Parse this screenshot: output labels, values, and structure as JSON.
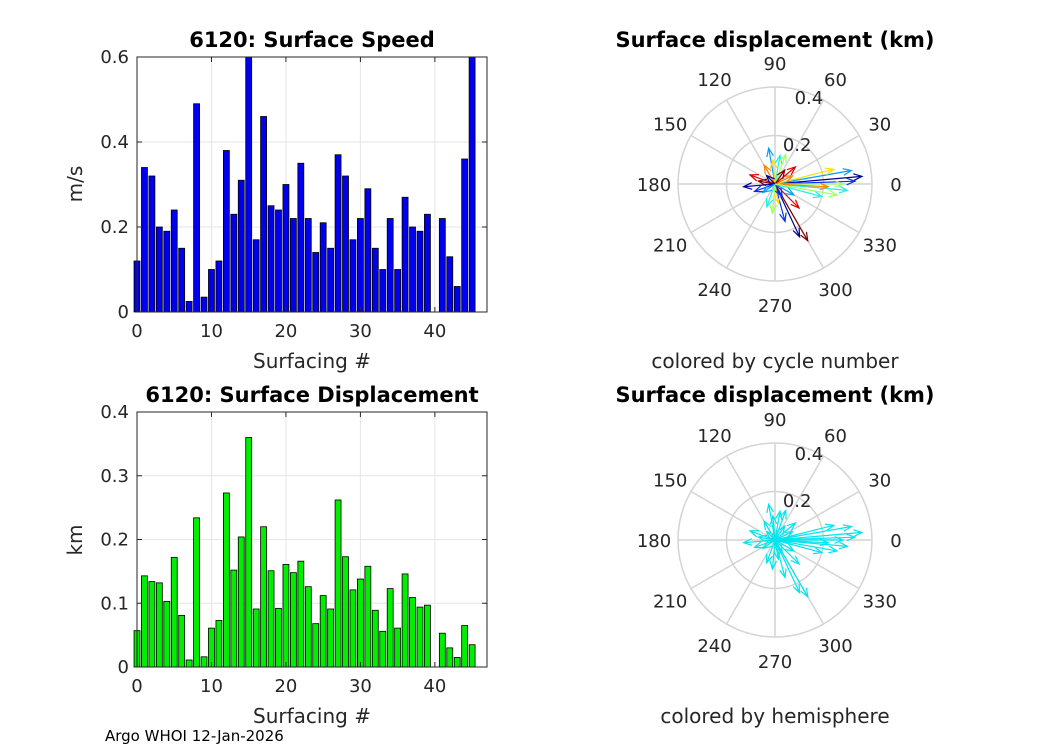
{
  "footer": "Argo WHOI 12-Jan-2026",
  "chart_data": [
    {
      "type": "bar",
      "title": "6120: Surface Speed",
      "xlabel": "Surfacing #",
      "ylabel": "m/s",
      "xlim": [
        0,
        47
      ],
      "ylim": [
        0,
        0.6
      ],
      "xticks": [
        "0",
        "10",
        "20",
        "30",
        "40"
      ],
      "yticks": [
        "0",
        "0.2",
        "0.4",
        "0.6"
      ],
      "bar_color": "#0000ee",
      "x": [
        0,
        1,
        2,
        3,
        4,
        5,
        6,
        7,
        8,
        9,
        10,
        11,
        12,
        13,
        14,
        15,
        16,
        17,
        18,
        19,
        20,
        21,
        22,
        23,
        24,
        25,
        26,
        27,
        28,
        29,
        30,
        31,
        32,
        33,
        34,
        35,
        36,
        37,
        38,
        39,
        40,
        41,
        42,
        43,
        44,
        45
      ],
      "values": [
        0.12,
        0.34,
        0.32,
        0.2,
        0.19,
        0.24,
        0.15,
        0.025,
        0.49,
        0.035,
        0.1,
        0.12,
        0.38,
        0.23,
        0.31,
        0.6,
        0.17,
        0.46,
        0.25,
        0.24,
        0.3,
        0.22,
        0.35,
        0.22,
        0.14,
        0.21,
        0.15,
        0.37,
        0.32,
        0.17,
        0.22,
        0.29,
        0.15,
        0.1,
        0.22,
        0.1,
        0.27,
        0.2,
        0.19,
        0.23,
        null,
        0.22,
        0.13,
        0.06,
        0.36,
        0.6
      ]
    },
    {
      "type": "polar-quiver",
      "title": "Surface displacement (km)",
      "subtitle": "colored by cycle number",
      "rmax": 0.4,
      "r_tick_labels": [
        "0.2",
        "0.4"
      ],
      "angle_labels": [
        "0",
        "30",
        "60",
        "90",
        "120",
        "150",
        "180",
        "210",
        "240",
        "270",
        "300",
        "330"
      ],
      "arrow_colors": [
        "#00008f",
        "#0030ff",
        "#00a0ff",
        "#20f0e0",
        "#a0ff60",
        "#ffe000",
        "#ff8000",
        "#e00000",
        "#800000"
      ],
      "arrows": [
        {
          "angle_deg": 5,
          "r": 0.36
        },
        {
          "angle_deg": 2,
          "r": 0.33
        },
        {
          "angle_deg": 10,
          "r": 0.32
        },
        {
          "angle_deg": -5,
          "r": 0.3
        },
        {
          "angle_deg": 0,
          "r": 0.28
        },
        {
          "angle_deg": 14,
          "r": 0.25
        },
        {
          "angle_deg": -3,
          "r": 0.22
        },
        {
          "angle_deg": -45,
          "r": 0.14
        },
        {
          "angle_deg": -60,
          "r": 0.27
        },
        {
          "angle_deg": -65,
          "r": 0.24
        },
        {
          "angle_deg": -75,
          "r": 0.16
        },
        {
          "angle_deg": 100,
          "r": 0.15
        },
        {
          "angle_deg": 80,
          "r": 0.12
        },
        {
          "angle_deg": 70,
          "r": 0.13
        },
        {
          "angle_deg": 95,
          "r": 0.1
        },
        {
          "angle_deg": 120,
          "r": 0.09
        },
        {
          "angle_deg": 160,
          "r": 0.11
        },
        {
          "angle_deg": 170,
          "r": 0.07
        },
        {
          "angle_deg": 185,
          "r": 0.13
        },
        {
          "angle_deg": 200,
          "r": 0.09
        },
        {
          "angle_deg": 215,
          "r": 0.06
        },
        {
          "angle_deg": 250,
          "r": 0.1
        },
        {
          "angle_deg": 265,
          "r": 0.12
        },
        {
          "angle_deg": 280,
          "r": 0.08
        },
        {
          "angle_deg": 25,
          "r": 0.08
        },
        {
          "angle_deg": 40,
          "r": 0.11
        },
        {
          "angle_deg": 55,
          "r": 0.07
        },
        {
          "angle_deg": 135,
          "r": 0.05
        },
        {
          "angle_deg": 300,
          "r": 0.06
        },
        {
          "angle_deg": 330,
          "r": 0.09
        },
        {
          "angle_deg": 345,
          "r": 0.2
        },
        {
          "angle_deg": 350,
          "r": 0.26
        }
      ]
    },
    {
      "type": "bar",
      "title": "6120: Surface Displacement",
      "xlabel": "Surfacing #",
      "ylabel": "km",
      "xlim": [
        0,
        47
      ],
      "ylim": [
        0,
        0.4
      ],
      "xticks": [
        "0",
        "10",
        "20",
        "30",
        "40"
      ],
      "yticks": [
        "0",
        "0.1",
        "0.2",
        "0.3",
        "0.4"
      ],
      "bar_color": "#00ee00",
      "x": [
        0,
        1,
        2,
        3,
        4,
        5,
        6,
        7,
        8,
        9,
        10,
        11,
        12,
        13,
        14,
        15,
        16,
        17,
        18,
        19,
        20,
        21,
        22,
        23,
        24,
        25,
        26,
        27,
        28,
        29,
        30,
        31,
        32,
        33,
        34,
        35,
        36,
        37,
        38,
        39,
        40,
        41,
        42,
        43,
        44,
        45
      ],
      "values": [
        0.057,
        0.143,
        0.134,
        0.132,
        0.103,
        0.172,
        0.081,
        0.011,
        0.234,
        0.016,
        0.061,
        0.073,
        0.273,
        0.152,
        0.204,
        0.36,
        0.091,
        0.22,
        0.151,
        0.092,
        0.161,
        0.148,
        0.166,
        0.126,
        0.068,
        0.112,
        0.091,
        0.262,
        0.173,
        0.121,
        0.138,
        0.158,
        0.089,
        0.056,
        0.123,
        0.061,
        0.146,
        0.109,
        0.094,
        0.097,
        null,
        0.053,
        0.03,
        0.015,
        0.065,
        0.035
      ]
    },
    {
      "type": "polar-quiver",
      "title": "Surface displacement (km)",
      "subtitle": "colored by hemisphere",
      "rmax": 0.4,
      "r_tick_labels": [
        "0.2",
        "0.4"
      ],
      "angle_labels": [
        "0",
        "30",
        "60",
        "90",
        "120",
        "150",
        "180",
        "210",
        "240",
        "270",
        "300",
        "330"
      ],
      "arrow_colors": [
        "#00e5ee"
      ],
      "arrows": [
        {
          "angle_deg": 5,
          "r": 0.36
        },
        {
          "angle_deg": 2,
          "r": 0.33
        },
        {
          "angle_deg": 10,
          "r": 0.32
        },
        {
          "angle_deg": -5,
          "r": 0.3
        },
        {
          "angle_deg": 0,
          "r": 0.28
        },
        {
          "angle_deg": 14,
          "r": 0.25
        },
        {
          "angle_deg": -3,
          "r": 0.22
        },
        {
          "angle_deg": -45,
          "r": 0.14
        },
        {
          "angle_deg": -60,
          "r": 0.27
        },
        {
          "angle_deg": -65,
          "r": 0.24
        },
        {
          "angle_deg": -75,
          "r": 0.16
        },
        {
          "angle_deg": 100,
          "r": 0.15
        },
        {
          "angle_deg": 80,
          "r": 0.12
        },
        {
          "angle_deg": 70,
          "r": 0.13
        },
        {
          "angle_deg": 95,
          "r": 0.1
        },
        {
          "angle_deg": 120,
          "r": 0.09
        },
        {
          "angle_deg": 160,
          "r": 0.11
        },
        {
          "angle_deg": 170,
          "r": 0.07
        },
        {
          "angle_deg": 185,
          "r": 0.13
        },
        {
          "angle_deg": 200,
          "r": 0.09
        },
        {
          "angle_deg": 215,
          "r": 0.06
        },
        {
          "angle_deg": 250,
          "r": 0.1
        },
        {
          "angle_deg": 265,
          "r": 0.12
        },
        {
          "angle_deg": 280,
          "r": 0.08
        },
        {
          "angle_deg": 25,
          "r": 0.08
        },
        {
          "angle_deg": 40,
          "r": 0.11
        },
        {
          "angle_deg": 55,
          "r": 0.07
        },
        {
          "angle_deg": 135,
          "r": 0.05
        },
        {
          "angle_deg": 300,
          "r": 0.06
        },
        {
          "angle_deg": 330,
          "r": 0.09
        },
        {
          "angle_deg": 345,
          "r": 0.2
        },
        {
          "angle_deg": 350,
          "r": 0.26
        }
      ]
    }
  ]
}
